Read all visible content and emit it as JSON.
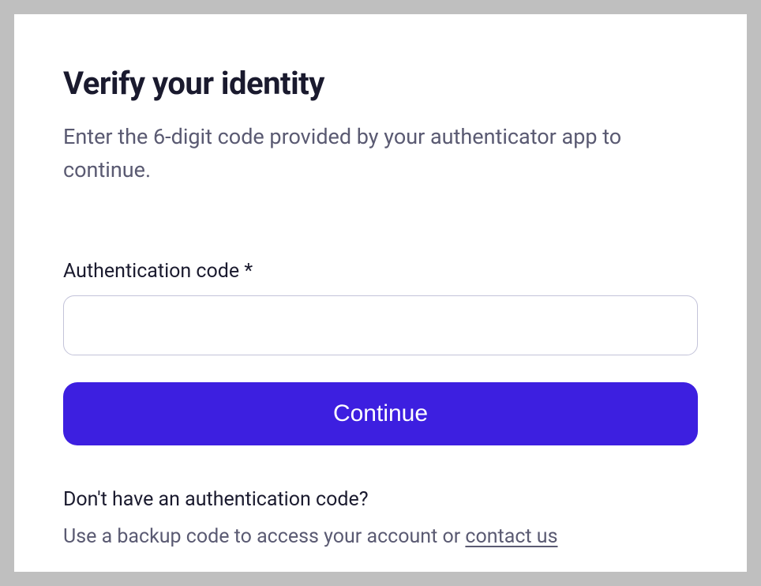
{
  "card": {
    "heading": "Verify your identity",
    "description": "Enter the 6-digit code provided by your authenticator app to continue.",
    "form": {
      "code_label": "Authentication code *",
      "code_value": "",
      "continue_label": "Continue"
    },
    "help": {
      "question": "Don't have an authentication code?",
      "text_prefix": "Use a backup code to access your account or ",
      "link_label": "contact us"
    }
  },
  "colors": {
    "page_background": "#bfbfbf",
    "card_background": "#ffffff",
    "heading_text": "#1a1a2e",
    "body_text": "#5a5a72",
    "input_border": "#c3c3d9",
    "button_background": "#3d1fe0",
    "button_text": "#ffffff"
  }
}
